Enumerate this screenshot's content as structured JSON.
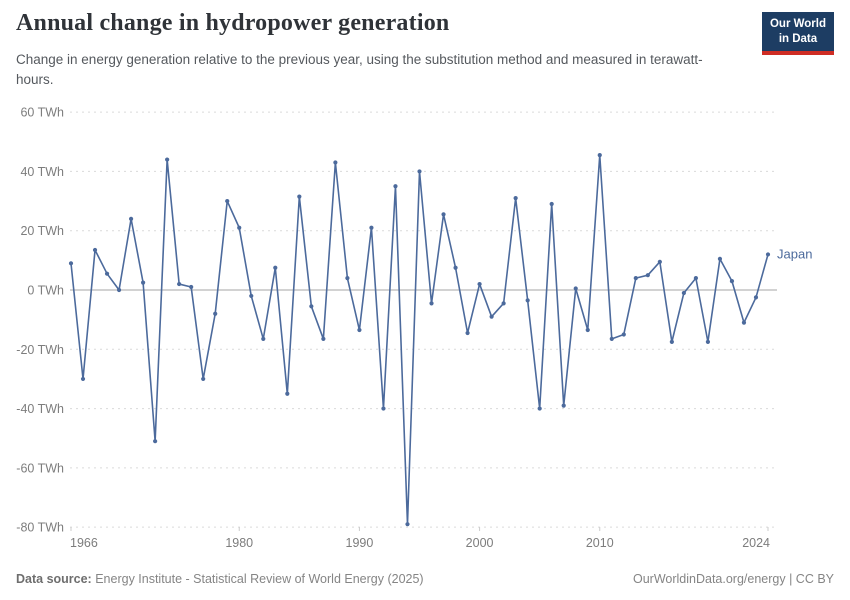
{
  "header": {
    "title": "Annual change in hydropower generation",
    "subtitle": "Change in energy generation relative to the previous year, using the substitution method and measured in terawatt-hours.",
    "logo": {
      "line1": "Our World",
      "line2": "in Data",
      "bg_color": "#1d3d63",
      "accent_color": "#cf2d24"
    }
  },
  "footer": {
    "source_label": "Data source:",
    "source_text": " Energy Institute - Statistical Review of World Energy (2025)",
    "right_text": "OurWorldinData.org/energy | CC BY"
  },
  "chart_data": {
    "type": "line",
    "title": "Annual change in hydropower generation",
    "unit": "TWh",
    "grid": "horizontal-dashed",
    "zero_line": true,
    "legend_position": "end-of-line",
    "xlim": [
      1966,
      2024
    ],
    "ylim": [
      -80,
      60
    ],
    "yticks": [
      60,
      40,
      20,
      0,
      -20,
      -40,
      -60,
      -80
    ],
    "ytick_suffix": " TWh",
    "xticks": [
      1966,
      1980,
      1990,
      2000,
      2010,
      2024
    ],
    "colors": {
      "line": "#4c6a9c",
      "grid": "#dadada",
      "zero_line": "#c4c4c4",
      "axis_text": "#7d7d7d"
    },
    "series": [
      {
        "name": "Japan",
        "color": "#4c6a9c",
        "x": [
          1966,
          1967,
          1968,
          1969,
          1970,
          1971,
          1972,
          1973,
          1974,
          1975,
          1976,
          1977,
          1978,
          1979,
          1980,
          1981,
          1982,
          1983,
          1984,
          1985,
          1986,
          1987,
          1988,
          1989,
          1990,
          1991,
          1992,
          1993,
          1994,
          1995,
          1996,
          1997,
          1998,
          1999,
          2000,
          2001,
          2002,
          2003,
          2004,
          2005,
          2006,
          2007,
          2008,
          2009,
          2010,
          2011,
          2012,
          2013,
          2014,
          2015,
          2016,
          2017,
          2018,
          2019,
          2020,
          2021,
          2022,
          2023,
          2024
        ],
        "values": [
          9,
          -30,
          13.5,
          5.5,
          0,
          24,
          2.5,
          -51,
          44,
          2,
          1,
          -30,
          -8,
          30,
          21,
          -2,
          -16.5,
          7.5,
          -35,
          31.5,
          -5.5,
          -16.5,
          43,
          4,
          -13.5,
          21,
          -40,
          35,
          -79,
          40,
          -4.5,
          25.5,
          7.5,
          -14.5,
          2,
          -9,
          -4.5,
          31,
          -3.5,
          -40,
          29,
          -39,
          0.5,
          -13.5,
          45.5,
          -16.5,
          -15,
          4,
          5,
          9.5,
          -17.5,
          -1,
          4,
          -17.5,
          10.5,
          3,
          -11,
          -2.5,
          12
        ]
      }
    ]
  }
}
